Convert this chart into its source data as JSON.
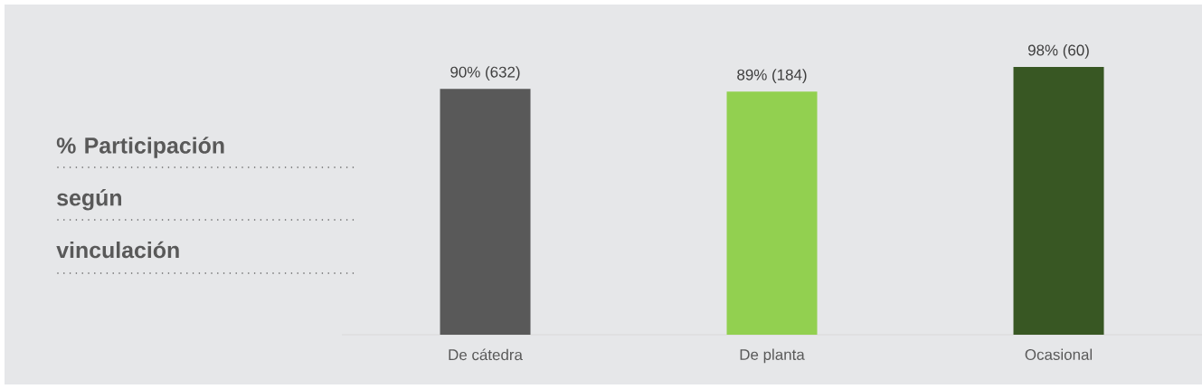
{
  "chart_data": {
    "type": "bar",
    "title": "% Participación según vinculación",
    "categories": [
      "De cátedra",
      "De planta",
      "Ocasional"
    ],
    "values": [
      90,
      89,
      98
    ],
    "colors": [
      "#595959",
      "#92d050",
      "#385723"
    ],
    "value_labels": [
      "90% (632)",
      "89% (184)",
      "98% (60)"
    ]
  }
}
